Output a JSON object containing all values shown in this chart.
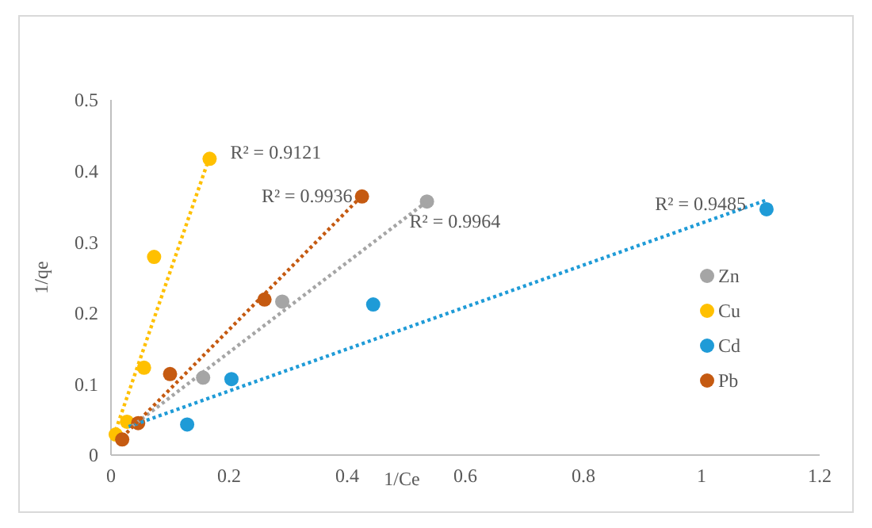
{
  "chart_data": {
    "type": "scatter",
    "xlabel": "1/Ce",
    "ylabel": "1/qe",
    "xlim": [
      0,
      1.2
    ],
    "xticks": [
      0,
      0.2,
      0.4,
      0.6,
      0.8,
      1,
      1.2
    ],
    "ylim": [
      0,
      0.5
    ],
    "yticks": [
      0,
      0.1,
      0.2,
      0.3,
      0.4,
      0.5
    ],
    "grid": false,
    "legend": "right",
    "marker": "circle",
    "series": [
      {
        "name": "Zn",
        "color": "#a5a5a5",
        "x": [
          0.156,
          0.29,
          0.535
        ],
        "values": [
          0.109,
          0.216,
          0.357
        ]
      },
      {
        "name": "Cu",
        "color": "#ffc000",
        "x": [
          0.008,
          0.027,
          0.056,
          0.073,
          0.167
        ],
        "values": [
          0.029,
          0.047,
          0.123,
          0.279,
          0.417
        ]
      },
      {
        "name": "Cd",
        "color": "#1f9bd7",
        "x": [
          0.129,
          0.204,
          0.444,
          1.11
        ],
        "values": [
          0.043,
          0.107,
          0.212,
          0.346
        ]
      },
      {
        "name": "Pb",
        "color": "#c55a11",
        "x": [
          0.019,
          0.046,
          0.1,
          0.26,
          0.425
        ],
        "values": [
          0.022,
          0.045,
          0.114,
          0.219,
          0.364
        ]
      },
      {
        "type": "line",
        "line_style": "dotted",
        "marker": "none",
        "color": "#a5a5a5",
        "x": [
          0.035,
          0.535
        ],
        "values": [
          0.04,
          0.357
        ]
      },
      {
        "type": "line",
        "line_style": "dotted",
        "marker": "none",
        "color": "#ffc000",
        "x": [
          0.008,
          0.167
        ],
        "values": [
          0.035,
          0.42
        ]
      },
      {
        "type": "line",
        "line_style": "dotted",
        "marker": "none",
        "color": "#1f9bd7",
        "x": [
          0.03,
          1.11
        ],
        "values": [
          0.04,
          0.359
        ]
      },
      {
        "type": "line",
        "line_style": "dotted",
        "marker": "none",
        "color": "#c55a11",
        "x": [
          0.019,
          0.425
        ],
        "values": [
          0.025,
          0.365
        ]
      }
    ],
    "annotations": [
      "R² = 0.9964",
      "R² = 0.9121",
      "R² = 0.9485",
      "R² = 0.9936"
    ]
  }
}
